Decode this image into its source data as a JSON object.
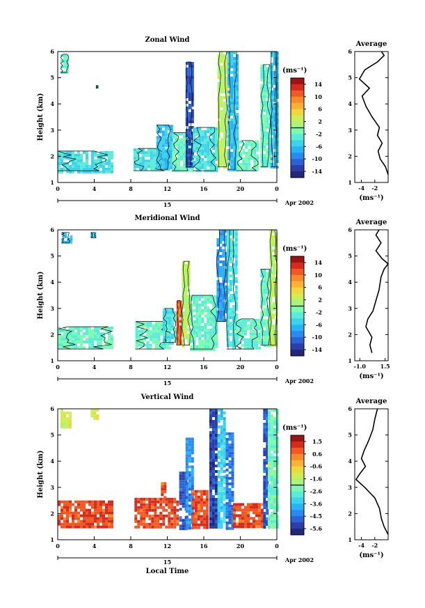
{
  "chart_data": [
    {
      "type": "heatmap",
      "title": "Zonal Wind",
      "xlabel": "",
      "ylabel": "Height (km)",
      "x_ticks": [
        "0",
        "4",
        "8",
        "12",
        "16",
        "20",
        "0"
      ],
      "x_day_label": "15",
      "date_label": "Apr 2002",
      "y_ticks": [
        "1",
        "2",
        "3",
        "4",
        "5",
        "6"
      ],
      "ylim": [
        1,
        6
      ],
      "xlim": [
        0,
        24
      ],
      "colorbar": {
        "unit": "(ms⁻¹)",
        "ticks": [
          "14",
          "10",
          "6",
          "2",
          "-2",
          "-6",
          "-10",
          "-14"
        ]
      },
      "average": {
        "title": "Average",
        "xlabel": "(ms⁻¹)",
        "x_ticks": [
          "-4",
          "-2"
        ],
        "xlim": [
          -5,
          0
        ],
        "y_ticks": [
          "1",
          "2",
          "3",
          "4",
          "5",
          "6"
        ],
        "profile": [
          [
            0,
            1.3
          ],
          [
            -0.4,
            1.6
          ],
          [
            -1.2,
            1.9
          ],
          [
            -1.5,
            2.2
          ],
          [
            -0.9,
            2.5
          ],
          [
            -1.6,
            2.8
          ],
          [
            -1.3,
            3.1
          ],
          [
            -2.4,
            3.5
          ],
          [
            -3.3,
            3.9
          ],
          [
            -3.9,
            4.3
          ],
          [
            -2.8,
            4.6
          ],
          [
            -4.3,
            4.95
          ],
          [
            -3.5,
            5.3
          ],
          [
            -1.6,
            5.6
          ],
          [
            -0.6,
            5.85
          ],
          [
            -1.0,
            6.0
          ]
        ]
      },
      "patches": [
        {
          "x": [
            0,
            6
          ],
          "y": [
            1.45,
            2.2
          ],
          "v": -4
        },
        {
          "x": [
            0.3,
            1.2
          ],
          "y": [
            5.2,
            5.9
          ],
          "v": -2
        },
        {
          "x": [
            4.2,
            4.4
          ],
          "y": [
            4.6,
            4.7
          ],
          "v": -6
        },
        {
          "x": [
            8.3,
            12
          ],
          "y": [
            1.45,
            2.3
          ],
          "v": -4
        },
        {
          "x": [
            10.8,
            12.5
          ],
          "y": [
            1.5,
            3.2
          ],
          "v": -6
        },
        {
          "x": [
            12.5,
            14.8
          ],
          "y": [
            1.45,
            2.9
          ],
          "v": -2
        },
        {
          "x": [
            14,
            14.8
          ],
          "y": [
            1.6,
            5.6
          ],
          "v": -12
        },
        {
          "x": [
            14.8,
            17.5
          ],
          "y": [
            1.45,
            3.1
          ],
          "v": -4
        },
        {
          "x": [
            17.5,
            18.6
          ],
          "y": [
            1.6,
            6.0
          ],
          "v": 2
        },
        {
          "x": [
            18.6,
            19.6
          ],
          "y": [
            1.5,
            6.0
          ],
          "v": -6
        },
        {
          "x": [
            19.6,
            22
          ],
          "y": [
            1.45,
            2.6
          ],
          "v": -2
        },
        {
          "x": [
            22.2,
            23.3
          ],
          "y": [
            1.6,
            5.5
          ],
          "v": -2
        },
        {
          "x": [
            23.3,
            24
          ],
          "y": [
            1.6,
            6.0
          ],
          "v": -6
        }
      ]
    },
    {
      "type": "heatmap",
      "title": "Meridional Wind",
      "xlabel": "",
      "ylabel": "Height (km)",
      "x_ticks": [
        "0",
        "4",
        "8",
        "12",
        "16",
        "20",
        "0"
      ],
      "x_day_label": "15",
      "date_label": "Apr 2002",
      "y_ticks": [
        "1",
        "2",
        "3",
        "4",
        "5",
        "6"
      ],
      "ylim": [
        1,
        6
      ],
      "xlim": [
        0,
        24
      ],
      "colorbar": {
        "unit": "(ms⁻¹)",
        "ticks": [
          "14",
          "10",
          "6",
          "2",
          "-2",
          "-6",
          "-10",
          "-14"
        ]
      },
      "average": {
        "title": "Average",
        "xlabel": "(ms⁻¹)",
        "x_ticks": [
          "-1.0",
          "1.5"
        ],
        "xlim": [
          -1.5,
          1.8
        ],
        "y_ticks": [
          "1",
          "2",
          "3",
          "4",
          "5",
          "6"
        ],
        "profile": [
          [
            0.2,
            1.3
          ],
          [
            0.0,
            1.6
          ],
          [
            0.2,
            1.9
          ],
          [
            -0.4,
            2.3
          ],
          [
            -0.2,
            2.6
          ],
          [
            0.3,
            2.9
          ],
          [
            0.6,
            3.3
          ],
          [
            0.9,
            3.7
          ],
          [
            1.1,
            4.2
          ],
          [
            1.4,
            4.5
          ],
          [
            1.8,
            4.7
          ],
          [
            1.2,
            4.9
          ],
          [
            0.6,
            5.2
          ],
          [
            1.1,
            5.5
          ],
          [
            0.6,
            5.8
          ],
          [
            0.9,
            6.0
          ]
        ]
      },
      "patches": [
        {
          "x": [
            0,
            6
          ],
          "y": [
            1.45,
            2.3
          ],
          "v": -2
        },
        {
          "x": [
            0.4,
            1.4
          ],
          "y": [
            5.5,
            5.9
          ],
          "v": -6
        },
        {
          "x": [
            3.6,
            4.2
          ],
          "y": [
            5.7,
            5.9
          ],
          "v": -6
        },
        {
          "x": [
            8.5,
            12.4
          ],
          "y": [
            1.45,
            2.5
          ],
          "v": -2
        },
        {
          "x": [
            11.5,
            13.0
          ],
          "y": [
            1.7,
            3.0
          ],
          "v": -4
        },
        {
          "x": [
            13.0,
            13.6
          ],
          "y": [
            1.6,
            3.3
          ],
          "v": 10
        },
        {
          "x": [
            13.6,
            14.5
          ],
          "y": [
            1.6,
            4.8
          ],
          "v": 2
        },
        {
          "x": [
            14.5,
            17.4
          ],
          "y": [
            1.45,
            3.5
          ],
          "v": -2
        },
        {
          "x": [
            17.4,
            18.5
          ],
          "y": [
            2.5,
            6.0
          ],
          "v": -8
        },
        {
          "x": [
            18.5,
            19.5
          ],
          "y": [
            1.45,
            6.0
          ],
          "v": -4
        },
        {
          "x": [
            19.5,
            22.2
          ],
          "y": [
            1.45,
            2.6
          ],
          "v": -2
        },
        {
          "x": [
            22.2,
            23.2
          ],
          "y": [
            1.6,
            4.5
          ],
          "v": -2
        },
        {
          "x": [
            23.2,
            24
          ],
          "y": [
            1.6,
            6.0
          ],
          "v": 2
        }
      ]
    },
    {
      "type": "heatmap",
      "title": "Vertical Wind",
      "xlabel": "Local Time",
      "ylabel": "Height (km)",
      "x_ticks": [
        "0",
        "4",
        "8",
        "12",
        "16",
        "20",
        "0"
      ],
      "x_day_label": "15",
      "date_label": "Apr 2002",
      "y_ticks": [
        "1",
        "2",
        "3",
        "4",
        "5",
        "6"
      ],
      "ylim": [
        1,
        6
      ],
      "xlim": [
        0,
        24
      ],
      "colorbar": {
        "unit": "(ms⁻¹)",
        "ticks": [
          "1.5",
          "0.6",
          "-0.6",
          "-1.6",
          "-2.6",
          "-3.6",
          "-4.5",
          "-5.6"
        ]
      },
      "average": {
        "title": "Average",
        "xlabel": "(ms⁻¹)",
        "x_ticks": [
          "-4",
          "-2"
        ],
        "xlim": [
          -5,
          0
        ],
        "y_ticks": [
          "1",
          "2",
          "3",
          "4",
          "5",
          "6"
        ],
        "profile": [
          [
            0,
            1.2
          ],
          [
            -0.6,
            1.5
          ],
          [
            -1.0,
            1.8
          ],
          [
            -1.3,
            2.2
          ],
          [
            -2.0,
            2.6
          ],
          [
            -3.5,
            3.0
          ],
          [
            -4.8,
            3.3
          ],
          [
            -4.3,
            3.5
          ],
          [
            -3.4,
            3.8
          ],
          [
            -4.0,
            4.1
          ],
          [
            -3.6,
            4.4
          ],
          [
            -2.9,
            4.8
          ],
          [
            -2.3,
            5.2
          ],
          [
            -2.0,
            5.6
          ],
          [
            -1.6,
            6.0
          ]
        ]
      },
      "patches": [
        {
          "x": [
            0,
            6
          ],
          "y": [
            1.45,
            2.5
          ],
          "v": 0.9
        },
        {
          "x": [
            0.3,
            1.3
          ],
          "y": [
            5.3,
            6.0
          ],
          "v": -1.2
        },
        {
          "x": [
            3.6,
            4.4
          ],
          "y": [
            5.6,
            6.0
          ],
          "v": -1.2
        },
        {
          "x": [
            8.4,
            13.2
          ],
          "y": [
            1.45,
            2.6
          ],
          "v": 0.9
        },
        {
          "x": [
            11.3,
            11.7
          ],
          "y": [
            2.6,
            3.2
          ],
          "v": 0.9
        },
        {
          "x": [
            13.3,
            14.0
          ],
          "y": [
            1.45,
            3.6
          ],
          "v": -5.0
        },
        {
          "x": [
            14.0,
            14.7
          ],
          "y": [
            1.45,
            4.9
          ],
          "v": -4.2
        },
        {
          "x": [
            14.7,
            16.5
          ],
          "y": [
            1.45,
            2.9
          ],
          "v": 0.9
        },
        {
          "x": [
            16.6,
            17.5
          ],
          "y": [
            1.45,
            6.0
          ],
          "v": -5.3
        },
        {
          "x": [
            17.5,
            18.4
          ],
          "y": [
            1.45,
            6.0
          ],
          "v": -3.3
        },
        {
          "x": [
            18.4,
            19.2
          ],
          "y": [
            1.45,
            5.1
          ],
          "v": -4.6
        },
        {
          "x": [
            19.2,
            22.5
          ],
          "y": [
            1.45,
            2.4
          ],
          "v": 0.9
        },
        {
          "x": [
            22.5,
            23.0
          ],
          "y": [
            1.45,
            6.0
          ],
          "v": -5.0
        },
        {
          "x": [
            23.0,
            24
          ],
          "y": [
            1.45,
            6.0
          ],
          "v": -2.4
        }
      ]
    }
  ]
}
